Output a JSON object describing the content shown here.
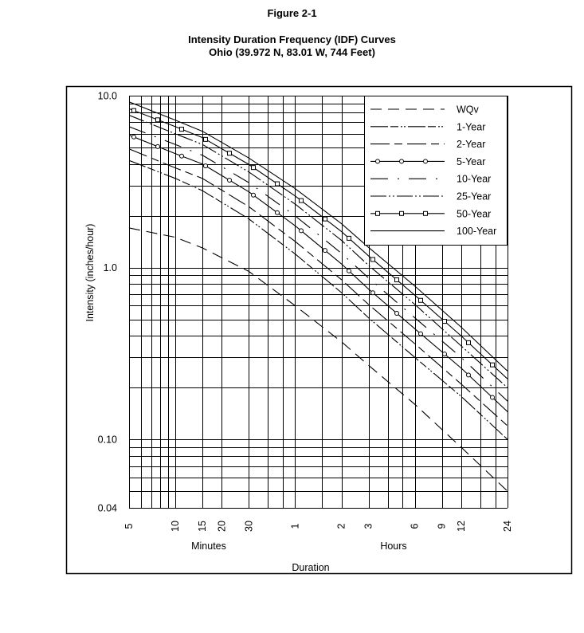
{
  "figure_label": "Figure 2-1",
  "title_line1": "Intensity Duration Frequency (IDF) Curves",
  "title_line2": "Ohio (39.972 N, 83.01 W, 744 Feet)",
  "chart_data": {
    "type": "line",
    "xscale": "log",
    "yscale": "log",
    "xlabel": "Duration",
    "xlabel_minutes": "Minutes",
    "xlabel_hours": "Hours",
    "ylabel": "Intensity (inches/hour)",
    "x_unit": "minutes",
    "xlim": [
      5,
      1440
    ],
    "ylim": [
      0.04,
      10.0
    ],
    "grid": true,
    "legend_position": "top-right",
    "x_ticks": [
      {
        "value": 5,
        "label": "5"
      },
      {
        "value": 10,
        "label": "10"
      },
      {
        "value": 15,
        "label": "15"
      },
      {
        "value": 20,
        "label": "20"
      },
      {
        "value": 30,
        "label": "30"
      },
      {
        "value": 60,
        "label": "1"
      },
      {
        "value": 120,
        "label": "2"
      },
      {
        "value": 180,
        "label": "3"
      },
      {
        "value": 360,
        "label": "6"
      },
      {
        "value": 540,
        "label": "9"
      },
      {
        "value": 720,
        "label": "12"
      },
      {
        "value": 1440,
        "label": "24"
      }
    ],
    "x_gridlines": [
      5,
      6,
      7,
      8,
      9,
      10,
      15,
      20,
      30,
      40,
      50,
      60,
      90,
      120,
      180,
      240,
      300,
      360,
      540,
      720,
      960,
      1200,
      1440
    ],
    "y_ticks": [
      {
        "value": 10,
        "label": "10.0"
      },
      {
        "value": 1,
        "label": "1.0"
      },
      {
        "value": 0.1,
        "label": "0.10"
      },
      {
        "value": 0.04,
        "label": "0.04"
      }
    ],
    "y_gridlines": [
      10,
      9,
      8,
      7,
      6,
      5,
      4,
      3,
      2,
      1,
      0.9,
      0.8,
      0.7,
      0.6,
      0.5,
      0.4,
      0.3,
      0.2,
      0.1,
      0.09,
      0.08,
      0.07,
      0.06,
      0.05,
      0.04
    ],
    "x": [
      5,
      10,
      15,
      30,
      60,
      120,
      180,
      360,
      720,
      1440
    ],
    "series": [
      {
        "name": "WQv",
        "style": "long-dash",
        "values": [
          1.7,
          1.5,
          1.3,
          0.95,
          0.6,
          0.37,
          0.27,
          0.16,
          0.09,
          0.05
        ]
      },
      {
        "name": "1-Year",
        "style": "dash-dot-dot",
        "values": [
          4.2,
          3.3,
          2.8,
          1.92,
          1.2,
          0.715,
          0.51,
          0.3,
          0.178,
          0.1
        ]
      },
      {
        "name": "2-Year",
        "style": "long-short-dash",
        "values": [
          4.9,
          3.8,
          3.3,
          2.26,
          1.42,
          0.85,
          0.61,
          0.36,
          0.21,
          0.12
        ]
      },
      {
        "name": "5-Year",
        "style": "solid-circle-markers",
        "values": [
          5.9,
          4.6,
          4.0,
          2.76,
          1.75,
          1.05,
          0.75,
          0.44,
          0.26,
          0.145
        ]
      },
      {
        "name": "10-Year",
        "style": "dash-dot-gap",
        "values": [
          6.6,
          5.2,
          4.5,
          3.12,
          2.0,
          1.21,
          0.87,
          0.51,
          0.3,
          0.167
        ]
      },
      {
        "name": "25-Year",
        "style": "dash-dot-dot-short",
        "values": [
          7.7,
          6.0,
          5.2,
          3.6,
          2.34,
          1.44,
          1.03,
          0.61,
          0.35,
          0.2
        ]
      },
      {
        "name": "50-Year",
        "style": "solid-square-markers",
        "values": [
          8.4,
          6.6,
          5.7,
          3.98,
          2.61,
          1.62,
          1.17,
          0.69,
          0.4,
          0.225
        ]
      },
      {
        "name": "100-Year",
        "style": "solid",
        "values": [
          9.2,
          7.2,
          6.2,
          4.34,
          2.88,
          1.8,
          1.31,
          0.78,
          0.45,
          0.25
        ]
      }
    ],
    "colors": {
      "line": "#000000",
      "background": "#ffffff"
    }
  }
}
